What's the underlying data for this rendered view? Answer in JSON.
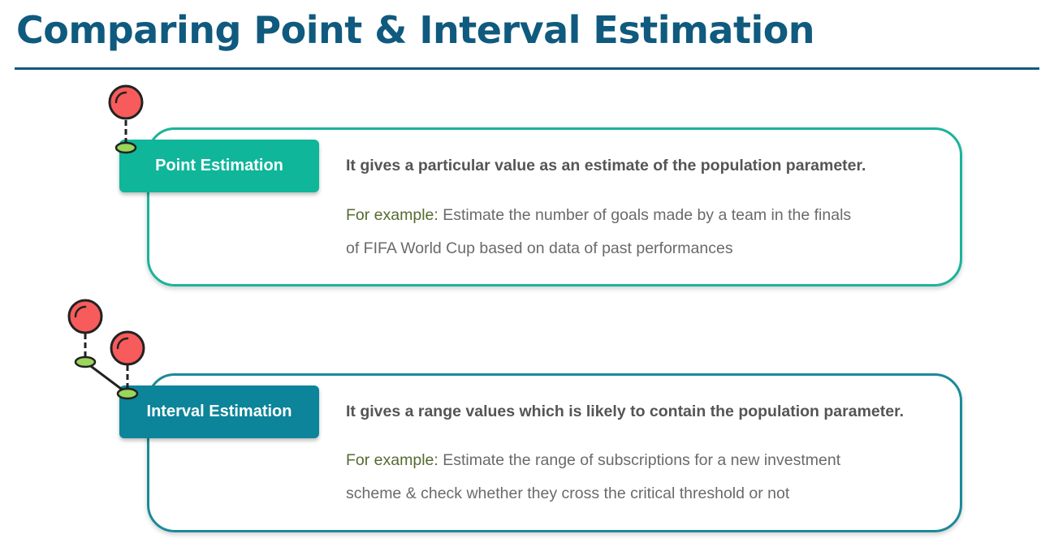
{
  "title": "Comparing Point & Interval Estimation",
  "colors": {
    "title": "#0f5a7e",
    "point": "#0fb69a",
    "interval": "#0c8499",
    "pin": "#f75b5b",
    "pin_base": "#9ad65a"
  },
  "sections": [
    {
      "label": "Point Estimation",
      "description": "It gives a particular value as an estimate of the population parameter.",
      "example_label": "For example:",
      "example_lines": [
        " Estimate the number of goals made by a team in the finals",
        "of FIFA World Cup based on data of past performances"
      ]
    },
    {
      "label": "Interval Estimation",
      "description": "It gives a range values which is likely to contain the population parameter.",
      "example_label": "For example:",
      "example_lines": [
        " Estimate the range of subscriptions for a new investment",
        "scheme & check whether they cross the critical threshold or not"
      ]
    }
  ]
}
